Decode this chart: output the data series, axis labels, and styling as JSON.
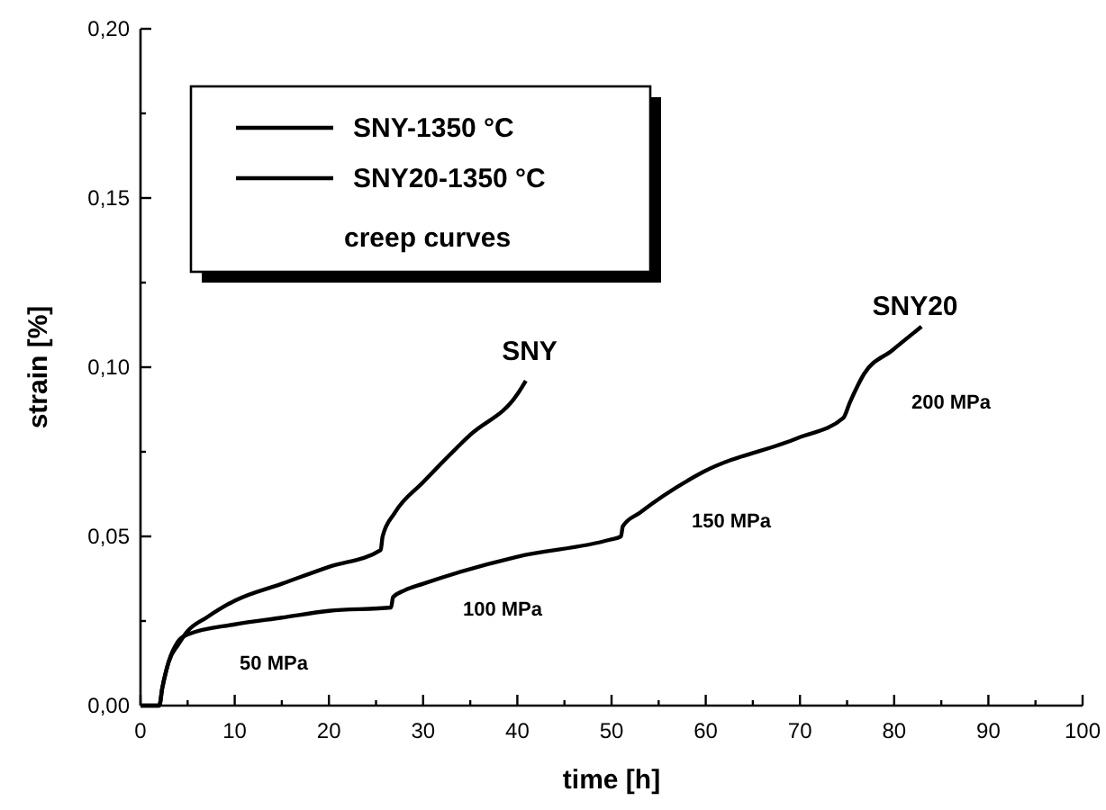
{
  "chart_data": {
    "type": "line",
    "xlabel": "time [h]",
    "ylabel": "strain [%]",
    "legend_title": "creep curves",
    "legend": "top left",
    "grid": false,
    "line_style": "solid",
    "marker": "none",
    "xlim": [
      0,
      100
    ],
    "ylim": [
      0,
      0.2
    ],
    "xticks": [
      0,
      {
        "value": 5,
        "label": null
      },
      10,
      {
        "value": 15,
        "label": null
      },
      20,
      {
        "value": 25,
        "label": null
      },
      30,
      {
        "value": 35,
        "label": null
      },
      40,
      {
        "value": 45,
        "label": null
      },
      50,
      {
        "value": 55,
        "label": null
      },
      60,
      {
        "value": 65,
        "label": null
      },
      70,
      {
        "value": 75,
        "label": null
      },
      80,
      {
        "value": 85,
        "label": null
      },
      90,
      {
        "value": 95,
        "label": null
      },
      100
    ],
    "yticks": [
      {
        "value": 0,
        "label": "0,00"
      },
      {
        "value": 0.025,
        "label": null
      },
      {
        "value": 0.05,
        "label": "0,05"
      },
      {
        "value": 0.075,
        "label": null
      },
      {
        "value": 0.1,
        "label": "0,10"
      },
      {
        "value": 0.125,
        "label": null
      },
      {
        "value": 0.15,
        "label": "0,15"
      },
      {
        "value": 0.175,
        "label": null
      },
      {
        "value": 0.2,
        "label": "0,20"
      }
    ],
    "series": [
      {
        "name": "SNY-1350 °C",
        "color": "#000000",
        "x": [
          0,
          2,
          2.3,
          2.7,
          3,
          4,
          5,
          7,
          10,
          15,
          20,
          25.5,
          25.7,
          27,
          30,
          35,
          40,
          40.9
        ],
        "values": [
          0,
          0,
          0.005,
          0.01,
          0.013,
          0.018,
          0.022,
          0.026,
          0.031,
          0.036,
          0.041,
          0.046,
          0.05,
          0.057,
          0.066,
          0.08,
          0.092,
          0.096
        ]
      },
      {
        "name": "SNY20-1350 °C",
        "color": "#000000",
        "x": [
          0,
          2,
          2.3,
          2.7,
          3,
          4,
          5,
          10,
          15,
          20,
          26.6,
          26.8,
          28,
          30,
          40,
          49.8,
          51,
          51.2,
          53,
          59.7,
          69.7,
          74.6,
          75.3,
          76.8,
          79.8,
          82.9
        ],
        "values": [
          0,
          0,
          0.005,
          0.01,
          0.013,
          0.019,
          0.021,
          0.024,
          0.026,
          0.028,
          0.029,
          0.032,
          0.034,
          0.036,
          0.044,
          0.049,
          0.05,
          0.053,
          0.057,
          0.069,
          0.079,
          0.085,
          0.0896,
          0.098,
          0.105,
          0.112
        ]
      }
    ],
    "annotations": [
      "SNY",
      "SNY20",
      "50 MPa",
      "100 MPa",
      "150 MPa",
      "200 MPa"
    ]
  }
}
